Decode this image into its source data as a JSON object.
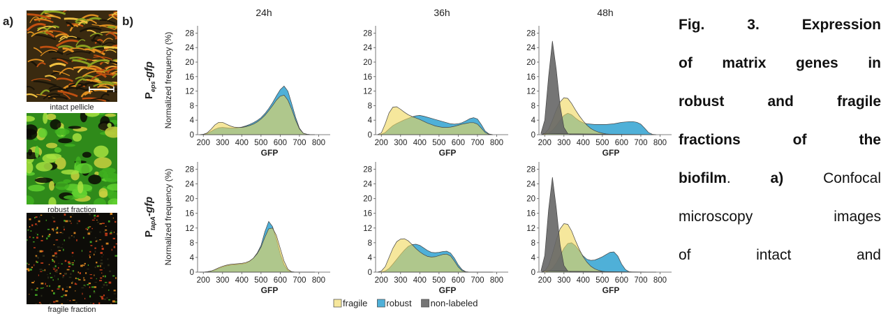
{
  "panel_labels": [
    "a)",
    "b)"
  ],
  "images": [
    {
      "caption": "intact pellicle"
    },
    {
      "caption": "robust fraction"
    },
    {
      "caption": "fragile fraction"
    }
  ],
  "chart_data": [
    {
      "type": "area",
      "title": "24h",
      "ylabel": "Normalized frequency (%)",
      "row_label": {
        "text": "P",
        "subscript": "eps",
        "suffix": "-gfp"
      },
      "xlabel": "GFP",
      "x": [
        180,
        200,
        220,
        240,
        260,
        280,
        300,
        320,
        340,
        360,
        380,
        400,
        420,
        440,
        460,
        480,
        500,
        520,
        540,
        560,
        580,
        600,
        620,
        640,
        660,
        680,
        700,
        720,
        740,
        760,
        780
      ],
      "series": [
        {
          "name": "fragile",
          "color": "#f0d75a",
          "opacity": 0.6,
          "values": [
            0,
            0.1,
            0.5,
            1.5,
            2.7,
            3.4,
            3.4,
            2.9,
            2.4,
            2.1,
            2.0,
            2.0,
            2.2,
            2.5,
            2.9,
            3.5,
            4.3,
            5.3,
            6.6,
            8.0,
            9.5,
            10.6,
            10.9,
            9.5,
            7.0,
            4.0,
            1.6,
            0.4,
            0.1,
            0,
            0
          ]
        },
        {
          "name": "robust",
          "color": "#4fb0d8",
          "values": [
            0,
            0.1,
            0.3,
            0.9,
            1.5,
            1.9,
            2.0,
            1.9,
            1.8,
            1.8,
            1.9,
            2.1,
            2.4,
            2.8,
            3.3,
            3.9,
            4.7,
            5.8,
            7.2,
            8.8,
            10.7,
            12.4,
            13.4,
            12.0,
            8.5,
            4.8,
            1.8,
            0.4,
            0.1,
            0,
            0
          ]
        }
      ],
      "xlim": [
        170,
        860
      ],
      "xticks": [
        200,
        300,
        400,
        500,
        600,
        700,
        800
      ],
      "ylim": [
        0,
        30
      ],
      "yticks": [
        0,
        4,
        8,
        12,
        16,
        20,
        24,
        28
      ]
    },
    {
      "type": "area",
      "title": "36h",
      "xlabel": "GFP",
      "x": [
        180,
        200,
        220,
        240,
        260,
        280,
        300,
        320,
        340,
        360,
        380,
        400,
        420,
        440,
        460,
        480,
        500,
        520,
        540,
        560,
        580,
        600,
        620,
        640,
        660,
        680,
        700,
        720,
        740,
        760,
        780
      ],
      "series": [
        {
          "name": "fragile",
          "color": "#f0d75a",
          "opacity": 0.6,
          "values": [
            0,
            0.5,
            3.0,
            6.0,
            7.6,
            7.7,
            7.0,
            6.2,
            5.5,
            5.0,
            4.6,
            4.2,
            3.7,
            3.2,
            2.8,
            2.4,
            2.2,
            2.0,
            2.0,
            2.1,
            2.3,
            2.6,
            2.9,
            3.1,
            3.3,
            3.3,
            2.9,
            1.8,
            0.6,
            0.1,
            0
          ]
        },
        {
          "name": "robust",
          "color": "#4fb0d8",
          "values": [
            0,
            0.1,
            0.6,
            1.6,
            2.5,
            3.1,
            3.6,
            4.1,
            4.5,
            4.9,
            5.2,
            5.3,
            5.1,
            4.8,
            4.5,
            4.2,
            3.9,
            3.6,
            3.3,
            3.0,
            2.9,
            3.0,
            3.3,
            3.8,
            4.4,
            4.7,
            4.3,
            2.8,
            1.0,
            0.2,
            0
          ]
        }
      ],
      "xlim": [
        170,
        860
      ],
      "xticks": [
        200,
        300,
        400,
        500,
        600,
        700,
        800
      ],
      "ylim": [
        0,
        30
      ],
      "yticks": [
        0,
        4,
        8,
        12,
        16,
        20,
        24,
        28
      ]
    },
    {
      "type": "area",
      "title": "48h",
      "xlabel": "GFP",
      "x": [
        180,
        200,
        220,
        240,
        260,
        280,
        300,
        320,
        340,
        360,
        380,
        400,
        420,
        440,
        460,
        480,
        500,
        520,
        540,
        560,
        580,
        600,
        620,
        640,
        660,
        680,
        700,
        720,
        740,
        760,
        780
      ],
      "series": [
        {
          "name": "fragile",
          "color": "#f0d75a",
          "opacity": 0.6,
          "values": [
            0,
            0.3,
            1.5,
            4.0,
            6.8,
            9.0,
            10.2,
            10.0,
            8.6,
            6.8,
            5.2,
            3.8,
            2.6,
            1.7,
            1.1,
            0.7,
            0.4,
            0.2,
            0.1,
            0,
            0,
            0,
            0,
            0,
            0,
            0,
            0,
            0,
            0,
            0,
            0
          ]
        },
        {
          "name": "robust",
          "color": "#4fb0d8",
          "values": [
            0,
            0.1,
            0.4,
            1.2,
            2.5,
            4.0,
            5.3,
            5.9,
            5.5,
            4.6,
            3.8,
            3.3,
            3.0,
            2.9,
            2.8,
            2.8,
            2.8,
            2.8,
            2.9,
            3.0,
            3.2,
            3.4,
            3.5,
            3.6,
            3.6,
            3.4,
            2.9,
            1.8,
            0.6,
            0.1,
            0
          ]
        },
        {
          "name": "non-labeled",
          "color": "#666666",
          "opacity": 0.9,
          "values": [
            0.3,
            4.0,
            16.0,
            25.8,
            18.0,
            8.0,
            2.0,
            0.3,
            0,
            0,
            0,
            0,
            0,
            0,
            0,
            0,
            0,
            0,
            0,
            0,
            0,
            0,
            0,
            0,
            0,
            0,
            0,
            0,
            0,
            0,
            0
          ]
        }
      ],
      "xlim": [
        170,
        860
      ],
      "xticks": [
        200,
        300,
        400,
        500,
        600,
        700,
        800
      ],
      "ylim": [
        0,
        30
      ],
      "yticks": [
        0,
        4,
        8,
        12,
        16,
        20,
        24,
        28
      ]
    },
    {
      "type": "area",
      "ylabel": "Normalized frequency (%)",
      "row_label": {
        "text": "P",
        "subscript": "tapA",
        "suffix": "-gfp"
      },
      "xlabel": "GFP",
      "x": [
        180,
        200,
        220,
        240,
        260,
        280,
        300,
        320,
        340,
        360,
        380,
        400,
        420,
        440,
        460,
        480,
        500,
        520,
        540,
        560,
        580,
        600,
        620,
        640,
        660,
        680,
        700,
        720,
        740,
        760,
        780
      ],
      "series": [
        {
          "name": "fragile",
          "color": "#f0d75a",
          "opacity": 0.6,
          "values": [
            0,
            0,
            0.1,
            0.3,
            0.7,
            1.2,
            1.6,
            1.9,
            2.1,
            2.2,
            2.3,
            2.4,
            2.6,
            3.0,
            3.8,
            5.0,
            6.8,
            9.5,
            11.8,
            12.0,
            10.0,
            6.5,
            3.0,
            0.8,
            0.1,
            0,
            0,
            0,
            0,
            0,
            0
          ]
        },
        {
          "name": "robust",
          "color": "#4fb0d8",
          "values": [
            0,
            0,
            0.1,
            0.3,
            0.6,
            1.0,
            1.4,
            1.7,
            1.9,
            2.0,
            2.1,
            2.2,
            2.4,
            2.9,
            3.8,
            5.2,
            7.3,
            11.0,
            13.8,
            12.4,
            9.0,
            5.0,
            2.0,
            0.5,
            0.1,
            0,
            0,
            0,
            0,
            0,
            0
          ]
        }
      ],
      "xlim": [
        170,
        860
      ],
      "xticks": [
        200,
        300,
        400,
        500,
        600,
        700,
        800
      ],
      "ylim": [
        0,
        30
      ],
      "yticks": [
        0,
        4,
        8,
        12,
        16,
        20,
        24,
        28
      ]
    },
    {
      "type": "area",
      "xlabel": "GFP",
      "x": [
        180,
        200,
        220,
        240,
        260,
        280,
        300,
        320,
        340,
        360,
        380,
        400,
        420,
        440,
        460,
        480,
        500,
        520,
        540,
        560,
        580,
        600,
        620,
        640,
        660,
        680,
        700,
        720,
        740,
        760,
        780
      ],
      "series": [
        {
          "name": "fragile",
          "color": "#f0d75a",
          "opacity": 0.6,
          "values": [
            0,
            0.3,
            1.5,
            4.0,
            6.5,
            8.3,
            9.0,
            9.1,
            8.5,
            7.5,
            6.4,
            5.5,
            4.8,
            4.3,
            4.1,
            4.2,
            4.5,
            4.8,
            4.9,
            4.4,
            3.0,
            1.4,
            0.4,
            0.1,
            0,
            0,
            0,
            0,
            0,
            0,
            0
          ]
        },
        {
          "name": "robust",
          "color": "#4fb0d8",
          "values": [
            0,
            0,
            0.3,
            1.0,
            2.2,
            3.5,
            4.8,
            6.0,
            7.0,
            7.5,
            7.6,
            7.3,
            6.6,
            5.9,
            5.4,
            5.3,
            5.4,
            5.6,
            5.7,
            5.2,
            3.8,
            2.0,
            0.7,
            0.1,
            0,
            0,
            0,
            0,
            0,
            0,
            0
          ]
        }
      ],
      "xlim": [
        170,
        860
      ],
      "xticks": [
        200,
        300,
        400,
        500,
        600,
        700,
        800
      ],
      "ylim": [
        0,
        30
      ],
      "yticks": [
        0,
        4,
        8,
        12,
        16,
        20,
        24,
        28
      ]
    },
    {
      "type": "area",
      "xlabel": "GFP",
      "legend": "bottom",
      "x": [
        180,
        200,
        220,
        240,
        260,
        280,
        300,
        320,
        340,
        360,
        380,
        400,
        420,
        440,
        460,
        480,
        500,
        520,
        540,
        560,
        580,
        600,
        620,
        640,
        660,
        680,
        700,
        720,
        740,
        760,
        780
      ],
      "series": [
        {
          "name": "fragile",
          "color": "#f0d75a",
          "opacity": 0.6,
          "values": [
            0,
            0.3,
            1.8,
            5.0,
            8.8,
            11.8,
            13.2,
            13.0,
            11.2,
            8.6,
            6.2,
            4.2,
            2.7,
            1.6,
            0.9,
            0.5,
            0.2,
            0.1,
            0,
            0,
            0,
            0,
            0,
            0,
            0,
            0,
            0,
            0,
            0,
            0,
            0
          ]
        },
        {
          "name": "robust",
          "color": "#4fb0d8",
          "values": [
            0,
            0,
            0.3,
            1.0,
            2.5,
            4.5,
            6.5,
            7.8,
            8.0,
            7.2,
            5.8,
            4.4,
            3.5,
            3.2,
            3.3,
            3.7,
            4.2,
            4.8,
            5.4,
            5.5,
            4.4,
            2.2,
            0.7,
            0.1,
            0,
            0,
            0,
            0,
            0,
            0,
            0
          ]
        },
        {
          "name": "non-labeled",
          "color": "#666666",
          "opacity": 0.9,
          "values": [
            0.3,
            4.5,
            17.0,
            25.8,
            17.5,
            7.5,
            1.8,
            0.3,
            0,
            0,
            0,
            0,
            0,
            0,
            0,
            0,
            0,
            0,
            0,
            0,
            0,
            0,
            0,
            0,
            0,
            0,
            0,
            0,
            0,
            0,
            0
          ]
        }
      ],
      "xlim": [
        170,
        860
      ],
      "xticks": [
        200,
        300,
        400,
        500,
        600,
        700,
        800
      ],
      "ylim": [
        0,
        30
      ],
      "yticks": [
        0,
        4,
        8,
        12,
        16,
        20,
        24,
        28
      ]
    }
  ],
  "caption": {
    "lines": [
      [
        {
          "text": "Fig. 3. Expression",
          "bold": true
        }
      ],
      [
        {
          "text": "of matrix genes in",
          "bold": true
        }
      ],
      [
        {
          "text": "robust and fragile",
          "bold": true
        }
      ],
      [
        {
          "text": "fractions of the",
          "bold": true
        }
      ],
      [
        {
          "text": "biofilm",
          "bold": true
        },
        {
          "text": ". ",
          "bold": false
        },
        {
          "text": "a)",
          "bold": true
        },
        {
          "text": " Confocal",
          "bold": false
        }
      ],
      [
        {
          "text": "microscopy images",
          "bold": false
        }
      ],
      [
        {
          "text": "of intact and",
          "bold": false
        }
      ]
    ]
  }
}
